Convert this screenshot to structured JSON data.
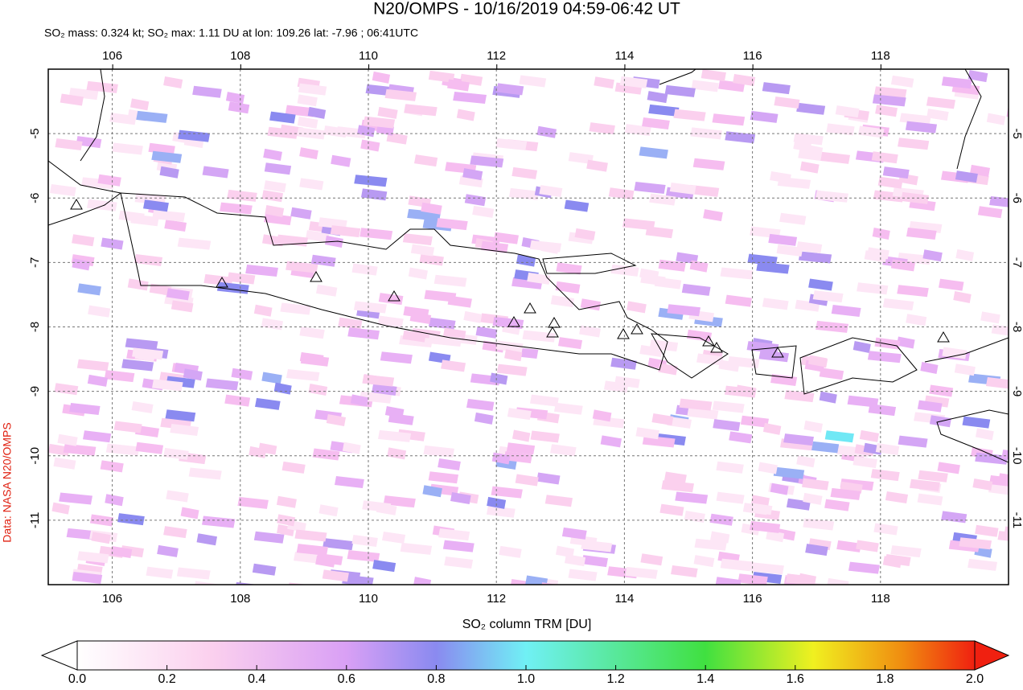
{
  "chart_data": {
    "type": "map",
    "title": "N20/OMPS - 10/16/2019 04:59-06:42 UT",
    "subtitle": "SO₂ mass: 0.324 kt; SO₂ max: 1.11 DU at lon: 109.26 lat: -7.96 ; 06:41UTC",
    "source_label": "Data: NASA N20/OMPS",
    "xlim": [
      105,
      120
    ],
    "ylim": [
      -12,
      -4
    ],
    "xticks": [
      106,
      108,
      110,
      112,
      114,
      116,
      118
    ],
    "yticks": [
      -5,
      -6,
      -7,
      -8,
      -9,
      -10,
      -11
    ],
    "grid": true,
    "colorbar": {
      "label": "SO₂ column TRM [DU]",
      "lim": [
        0,
        2
      ],
      "ticks": [
        {
          "value": 0,
          "label": "0.0"
        },
        {
          "value": 0.2,
          "label": "0.2"
        },
        {
          "value": 0.4,
          "label": "0.4"
        },
        {
          "value": 0.6,
          "label": "0.6"
        },
        {
          "value": 0.8,
          "label": "0.8"
        },
        {
          "value": 1,
          "label": "1.0"
        },
        {
          "value": 1.2,
          "label": "1.2"
        },
        {
          "value": 1.4,
          "label": "1.4"
        },
        {
          "value": 1.6,
          "label": "1.6"
        },
        {
          "value": 1.8,
          "label": "1.8"
        },
        {
          "value": 2,
          "label": "2.0"
        }
      ]
    }
  }
}
